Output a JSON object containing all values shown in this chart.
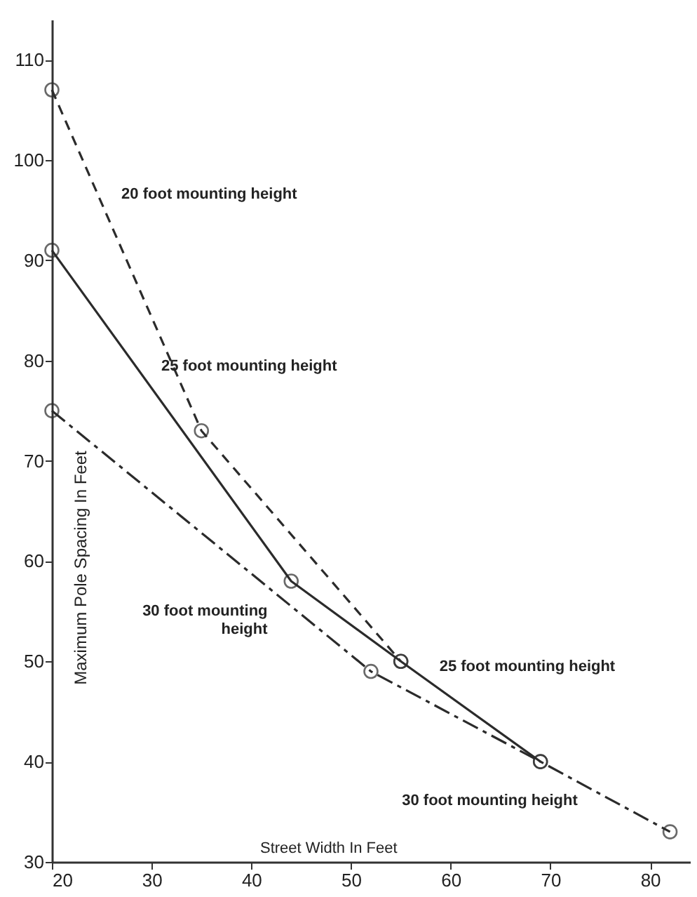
{
  "chart_data": {
    "type": "line",
    "xlabel": "Street Width In Feet",
    "ylabel": "Maximum Pole Spacing In Feet",
    "xlim": [
      20,
      84
    ],
    "ylim": [
      30,
      114
    ],
    "xticks": [
      20,
      30,
      40,
      50,
      60,
      70,
      80
    ],
    "yticks": [
      30,
      40,
      50,
      60,
      70,
      80,
      90,
      100,
      110
    ],
    "marker": "circle",
    "series": [
      {
        "color": "#2b2b2b",
        "line_style": "dashed",
        "x": [
          20,
          35,
          55
        ],
        "values": [
          107,
          73,
          50
        ]
      },
      {
        "color": "#2b2b2b",
        "line_style": "solid",
        "x": [
          20,
          44,
          55,
          69
        ],
        "values": [
          91,
          58,
          50,
          40
        ]
      },
      {
        "color": "#2b2b2b",
        "line_style": "dashdot",
        "x": [
          20,
          52,
          69,
          82
        ],
        "values": [
          75,
          49,
          40,
          33
        ]
      }
    ],
    "annotations": [
      {
        "text": "20 foot mounting height",
        "x": 25,
        "y": 95.7
      },
      {
        "text": "25 foot mounting height",
        "x": 29,
        "y": 78.6
      },
      {
        "text": "30 foot mounting\nheight",
        "x": 43.6,
        "y": 55.8
      },
      {
        "text": "25 foot mounting height",
        "x": 56.9,
        "y": 48.6
      },
      {
        "text": "30 foot mounting height",
        "x": 74.7,
        "y": 36.9
      }
    ]
  }
}
